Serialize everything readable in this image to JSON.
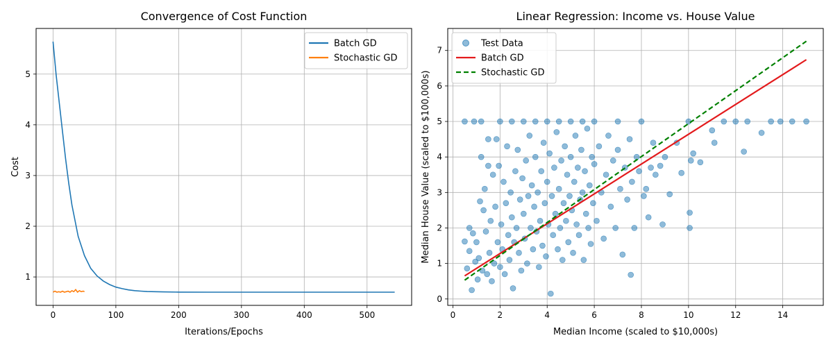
{
  "figure": {
    "background": "#ffffff"
  },
  "chart_data": [
    {
      "type": "line",
      "title": "Convergence of Cost Function",
      "xlabel": "Iterations/Epochs",
      "ylabel": "Cost",
      "xlim": [
        -27,
        571
      ],
      "ylim": [
        0.44,
        5.9
      ],
      "xticks": [
        0,
        100,
        200,
        300,
        400,
        500
      ],
      "yticks": [
        1,
        2,
        3,
        4,
        5
      ],
      "grid": true,
      "legend": "top-right",
      "series": [
        {
          "name": "Batch GD",
          "color": "#1f77b4",
          "x": [
            0,
            5,
            10,
            15,
            20,
            25,
            30,
            40,
            50,
            60,
            70,
            80,
            90,
            100,
            110,
            120,
            130,
            140,
            150,
            175,
            200,
            250,
            300,
            350,
            400,
            450,
            500,
            544
          ],
          "y": [
            5.64,
            4.98,
            4.42,
            3.87,
            3.33,
            2.85,
            2.42,
            1.8,
            1.42,
            1.17,
            1.02,
            0.92,
            0.85,
            0.8,
            0.77,
            0.745,
            0.73,
            0.72,
            0.712,
            0.705,
            0.702,
            0.7,
            0.7,
            0.7,
            0.7,
            0.7,
            0.7,
            0.7
          ]
        },
        {
          "name": "Stochastic GD",
          "color": "#ff7f0e",
          "x": [
            0,
            3,
            6,
            9,
            12,
            15,
            18,
            21,
            24,
            27,
            30,
            33,
            36,
            39,
            42,
            45,
            48,
            50
          ],
          "y": [
            0.7,
            0.72,
            0.7,
            0.71,
            0.7,
            0.72,
            0.7,
            0.71,
            0.72,
            0.7,
            0.73,
            0.71,
            0.75,
            0.7,
            0.73,
            0.71,
            0.72,
            0.71
          ]
        }
      ]
    },
    {
      "type": "scatter",
      "title": "Linear Regression: Income vs. House Value",
      "xlabel": "Median Income (scaled to $10,000s)",
      "ylabel": "Median House Value (scaled to $100,000s)",
      "xlim": [
        -0.22,
        15.72
      ],
      "ylim": [
        -0.18,
        7.62
      ],
      "xticks": [
        0,
        2,
        4,
        6,
        8,
        10,
        12,
        14
      ],
      "yticks": [
        0,
        1,
        2,
        3,
        4,
        5,
        6,
        7
      ],
      "grid": true,
      "legend": "top-left",
      "series": [
        {
          "name": "Test Data",
          "type": "scatter",
          "color": "#1f77b4",
          "alpha": 0.5,
          "points": [
            [
              0.5,
              1.62
            ],
            [
              0.5,
              5.0
            ],
            [
              0.6,
              0.86
            ],
            [
              0.7,
              2.0
            ],
            [
              0.7,
              1.35
            ],
            [
              0.8,
              0.25
            ],
            [
              0.85,
              1.85
            ],
            [
              0.9,
              5.0
            ],
            [
              0.95,
              1.05
            ],
            [
              1.0,
              1.6
            ],
            [
              1.05,
              0.55
            ],
            [
              1.1,
              1.15
            ],
            [
              1.15,
              2.75
            ],
            [
              1.2,
              4.0
            ],
            [
              1.2,
              5.0
            ],
            [
              1.25,
              0.8
            ],
            [
              1.3,
              2.5
            ],
            [
              1.35,
              3.1
            ],
            [
              1.4,
              1.9
            ],
            [
              1.45,
              0.7
            ],
            [
              1.5,
              3.75
            ],
            [
              1.5,
              4.5
            ],
            [
              1.55,
              1.3
            ],
            [
              1.6,
              2.2
            ],
            [
              1.65,
              0.5
            ],
            [
              1.7,
              3.5
            ],
            [
              1.75,
              1.0
            ],
            [
              1.8,
              2.6
            ],
            [
              1.85,
              4.5
            ],
            [
              1.9,
              1.6
            ],
            [
              1.95,
              3.75
            ],
            [
              2.0,
              0.9
            ],
            [
              2.0,
              5.0
            ],
            [
              2.05,
              2.1
            ],
            [
              2.1,
              1.4
            ],
            [
              2.15,
              3.3
            ],
            [
              2.2,
              0.7
            ],
            [
              2.25,
              2.7
            ],
            [
              2.3,
              4.3
            ],
            [
              2.35,
              1.8
            ],
            [
              2.4,
              1.1
            ],
            [
              2.45,
              3.0
            ],
            [
              2.5,
              2.3
            ],
            [
              2.5,
              5.0
            ],
            [
              2.55,
              0.3
            ],
            [
              2.6,
              1.6
            ],
            [
              2.65,
              3.6
            ],
            [
              2.7,
              2.0
            ],
            [
              2.75,
              4.2
            ],
            [
              2.8,
              1.3
            ],
            [
              2.85,
              2.8
            ],
            [
              2.9,
              0.8
            ],
            [
              2.95,
              3.4
            ],
            [
              3.0,
              2.4
            ],
            [
              3.0,
              5.0
            ],
            [
              3.05,
              1.7
            ],
            [
              3.1,
              3.9
            ],
            [
              3.15,
              1.0
            ],
            [
              3.2,
              2.9
            ],
            [
              3.25,
              4.6
            ],
            [
              3.3,
              2.0
            ],
            [
              3.35,
              3.2
            ],
            [
              3.4,
              1.4
            ],
            [
              3.45,
              2.6
            ],
            [
              3.5,
              4.0
            ],
            [
              3.5,
              5.0
            ],
            [
              3.55,
              1.9
            ],
            [
              3.6,
              3.0
            ],
            [
              3.65,
              0.9
            ],
            [
              3.7,
              2.2
            ],
            [
              3.75,
              3.6
            ],
            [
              3.8,
              1.5
            ],
            [
              3.85,
              4.4
            ],
            [
              3.9,
              2.7
            ],
            [
              3.95,
              1.2
            ],
            [
              4.0,
              3.3
            ],
            [
              4.0,
              5.0
            ],
            [
              4.05,
              2.1
            ],
            [
              4.1,
              4.1
            ],
            [
              4.15,
              0.15
            ],
            [
              4.2,
              2.9
            ],
            [
              4.25,
              1.8
            ],
            [
              4.3,
              3.7
            ],
            [
              4.35,
              2.4
            ],
            [
              4.4,
              4.7
            ],
            [
              4.45,
              1.4
            ],
            [
              4.5,
              3.1
            ],
            [
              4.5,
              5.0
            ],
            [
              4.55,
              2.0
            ],
            [
              4.6,
              3.9
            ],
            [
              4.65,
              1.1
            ],
            [
              4.7,
              2.7
            ],
            [
              4.75,
              4.3
            ],
            [
              4.8,
              2.2
            ],
            [
              4.85,
              3.5
            ],
            [
              4.9,
              1.6
            ],
            [
              4.95,
              2.9
            ],
            [
              5.0,
              4.0
            ],
            [
              5.0,
              5.0
            ],
            [
              5.05,
              2.5
            ],
            [
              5.1,
              1.3
            ],
            [
              5.15,
              3.3
            ],
            [
              5.2,
              4.6
            ],
            [
              5.25,
              2.1
            ],
            [
              5.3,
              3.7
            ],
            [
              5.35,
              1.8
            ],
            [
              5.4,
              2.8
            ],
            [
              5.45,
              4.2
            ],
            [
              5.5,
              3.0
            ],
            [
              5.5,
              5.0
            ],
            [
              5.55,
              1.1
            ],
            [
              5.6,
              3.6
            ],
            [
              5.65,
              2.4
            ],
            [
              5.7,
              4.8
            ],
            [
              5.75,
              2.0
            ],
            [
              5.8,
              3.2
            ],
            [
              5.85,
              1.55
            ],
            [
              5.9,
              4.0
            ],
            [
              5.95,
              2.7
            ],
            [
              6.0,
              3.8
            ],
            [
              6.0,
              5.0
            ],
            [
              6.1,
              2.2
            ],
            [
              6.2,
              4.3
            ],
            [
              6.3,
              3.0
            ],
            [
              6.4,
              1.7
            ],
            [
              6.5,
              3.5
            ],
            [
              6.6,
              4.6
            ],
            [
              6.7,
              2.6
            ],
            [
              6.8,
              3.9
            ],
            [
              6.9,
              2.0
            ],
            [
              7.0,
              4.2
            ],
            [
              7.0,
              5.0
            ],
            [
              7.1,
              3.1
            ],
            [
              7.2,
              1.25
            ],
            [
              7.3,
              3.7
            ],
            [
              7.4,
              2.8
            ],
            [
              7.5,
              4.5
            ],
            [
              7.55,
              0.68
            ],
            [
              7.6,
              3.3
            ],
            [
              7.7,
              2.0
            ],
            [
              7.8,
              4.0
            ],
            [
              7.9,
              3.6
            ],
            [
              8.0,
              5.0
            ],
            [
              8.1,
              2.9
            ],
            [
              8.2,
              3.1
            ],
            [
              8.3,
              2.3
            ],
            [
              8.4,
              3.7
            ],
            [
              8.5,
              4.4
            ],
            [
              8.6,
              3.5
            ],
            [
              8.8,
              3.75
            ],
            [
              8.9,
              2.1
            ],
            [
              9.0,
              4.0
            ],
            [
              9.2,
              2.95
            ],
            [
              9.5,
              4.4
            ],
            [
              9.7,
              3.55
            ],
            [
              10.0,
              5.0
            ],
            [
              10.05,
              2.0
            ],
            [
              10.05,
              2.43
            ],
            [
              10.1,
              3.9
            ],
            [
              10.2,
              4.1
            ],
            [
              10.5,
              3.85
            ],
            [
              11.0,
              4.75
            ],
            [
              11.1,
              4.4
            ],
            [
              11.5,
              5.0
            ],
            [
              12.0,
              5.0
            ],
            [
              12.35,
              4.15
            ],
            [
              12.5,
              5.0
            ],
            [
              13.1,
              4.68
            ],
            [
              13.5,
              5.0
            ],
            [
              13.9,
              5.0
            ],
            [
              14.4,
              5.0
            ],
            [
              15.0,
              5.0
            ]
          ]
        },
        {
          "name": "Batch GD",
          "type": "line",
          "color": "#e31a1c",
          "style": "solid",
          "x": [
            0.5,
            15.0
          ],
          "y": [
            0.65,
            6.74
          ]
        },
        {
          "name": "Stochastic GD",
          "type": "line",
          "color": "#008000",
          "style": "dashed",
          "x": [
            0.5,
            15.0
          ],
          "y": [
            0.53,
            7.26
          ]
        }
      ]
    }
  ]
}
